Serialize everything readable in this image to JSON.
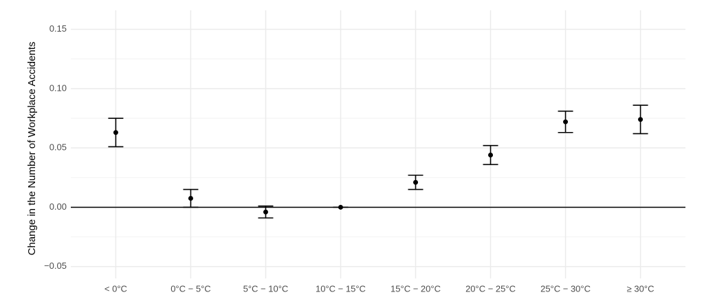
{
  "chart_data": {
    "type": "errorbar",
    "y_label": "Change in the Number of Workplace Accidents",
    "categories": [
      "< 0°C",
      "0°C − 5°C",
      "5°C − 10°C",
      "10°C − 15°C",
      "15°C − 20°C",
      "20°C − 25°C",
      "25°C − 30°C",
      "≥ 30°C"
    ],
    "values": [
      0.063,
      0.0075,
      -0.004,
      0,
      0.021,
      0.044,
      0.072,
      0.074
    ],
    "errors": [
      0.012,
      0.0075,
      0.005,
      0,
      0.006,
      0.008,
      0.009,
      0.012
    ],
    "color": "#000000",
    "ylim": [
      -0.06,
      0.166
    ],
    "yticks": [
      {
        "value": -0.05,
        "label": "−0.05"
      },
      {
        "value": 0,
        "label": "0.00"
      },
      {
        "value": 0.05,
        "label": "0.05"
      },
      {
        "value": 0.1,
        "label": "0.10"
      },
      {
        "value": 0.15,
        "label": "0.15"
      }
    ],
    "minor_yticks": [
      -0.025,
      0.025,
      0.075,
      0.125
    ],
    "reference_line": 0,
    "grid": true
  }
}
